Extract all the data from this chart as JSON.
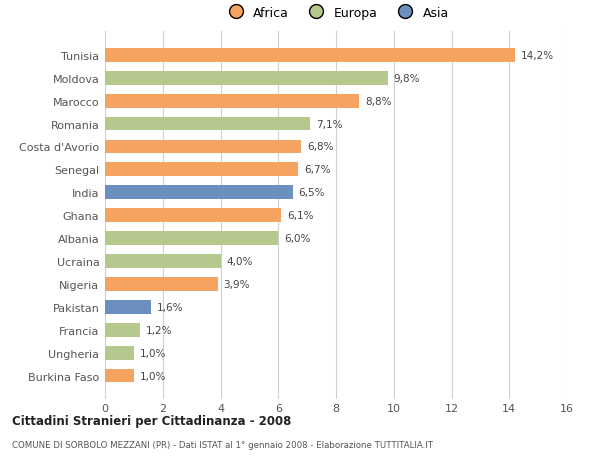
{
  "categories": [
    "Tunisia",
    "Moldova",
    "Marocco",
    "Romania",
    "Costa d'Avorio",
    "Senegal",
    "India",
    "Ghana",
    "Albania",
    "Ucraina",
    "Nigeria",
    "Pakistan",
    "Francia",
    "Ungheria",
    "Burkina Faso"
  ],
  "values": [
    14.2,
    9.8,
    8.8,
    7.1,
    6.8,
    6.7,
    6.5,
    6.1,
    6.0,
    4.0,
    3.9,
    1.6,
    1.2,
    1.0,
    1.0
  ],
  "labels": [
    "14,2%",
    "9,8%",
    "8,8%",
    "7,1%",
    "6,8%",
    "6,7%",
    "6,5%",
    "6,1%",
    "6,0%",
    "4,0%",
    "3,9%",
    "1,6%",
    "1,2%",
    "1,0%",
    "1,0%"
  ],
  "continents": [
    "Africa",
    "Europa",
    "Africa",
    "Europa",
    "Africa",
    "Africa",
    "Asia",
    "Africa",
    "Europa",
    "Europa",
    "Africa",
    "Asia",
    "Europa",
    "Europa",
    "Africa"
  ],
  "colors": {
    "Africa": "#F4A460",
    "Europa": "#B5C98E",
    "Asia": "#6B8FBF"
  },
  "xlim": [
    0,
    16
  ],
  "xticks": [
    0,
    2,
    4,
    6,
    8,
    10,
    12,
    14,
    16
  ],
  "title": "Cittadini Stranieri per Cittadinanza - 2008",
  "subtitle": "COMUNE DI SORBOLO MEZZANI (PR) - Dati ISTAT al 1° gennaio 2008 - Elaborazione TUTTITALIA.IT",
  "background_color": "#ffffff",
  "grid_color": "#d0d0d0",
  "bar_height": 0.6
}
